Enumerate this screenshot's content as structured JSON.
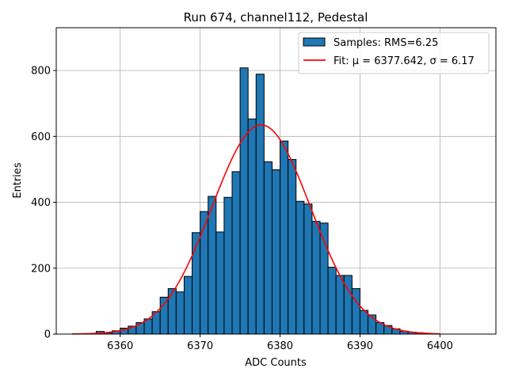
{
  "chart_data": {
    "type": "bar",
    "title": "Run 674, channel112, Pedestal",
    "xlabel": "ADC Counts",
    "ylabel": "Entries",
    "xlim": [
      6352,
      6407
    ],
    "ylim": [
      0,
      930
    ],
    "xticks": [
      6360,
      6370,
      6380,
      6390,
      6400
    ],
    "yticks": [
      0,
      200,
      400,
      600,
      800
    ],
    "grid": true,
    "legend_position": "top-right",
    "colors": {
      "bars": "#1f77b4",
      "bar_edge": "#000000",
      "fit": "#ff0000",
      "grid": "#b0b0b0"
    },
    "histogram": {
      "name": "Samples: RMS=6.25",
      "bin_width": 1,
      "bin_edges_start": 6357,
      "counts": [
        8,
        4,
        10,
        18,
        24,
        35,
        46,
        68,
        112,
        138,
        128,
        175,
        308,
        372,
        418,
        310,
        415,
        493,
        808,
        653,
        789,
        523,
        499,
        586,
        530,
        403,
        395,
        342,
        337,
        203,
        178,
        178,
        138,
        72,
        58,
        35,
        26,
        16,
        9,
        6,
        4
      ]
    },
    "fit": {
      "legend_prefix": "Fit: ",
      "legend_math": "μ = 6377.642, σ = 6.17",
      "mu": 6377.642,
      "sigma": 6.17,
      "amplitude": 635,
      "x_range": [
        6354,
        6400
      ]
    }
  }
}
